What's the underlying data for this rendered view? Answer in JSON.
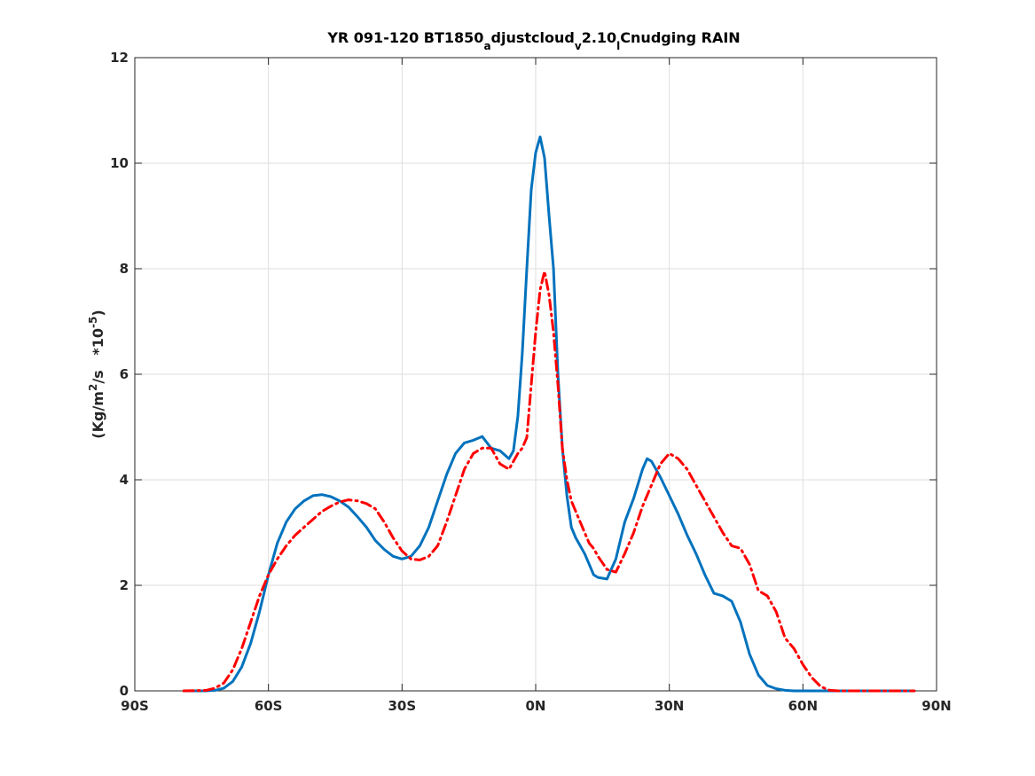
{
  "chart_data": {
    "type": "line",
    "title": {
      "base": "YR 091-120 BT1850",
      "sub1": "a",
      "mid1": "djustcloud",
      "sub2": "v",
      "mid2": "2.10",
      "sub3": "l",
      "tail": "Cnudging RAIN"
    },
    "ylabel": {
      "prefix": "(Kg/m",
      "sup1": "2",
      "mid": "/s   *10",
      "sup2": "-5",
      "suffix": ")"
    },
    "xlabel": "",
    "xlim": [
      -90,
      90
    ],
    "ylim": [
      0,
      12
    ],
    "grid": true,
    "x_ticks": [
      {
        "value": -90,
        "label": "90S"
      },
      {
        "value": -60,
        "label": "60S"
      },
      {
        "value": -30,
        "label": "30S"
      },
      {
        "value": 0,
        "label": "0N"
      },
      {
        "value": 30,
        "label": "30N"
      },
      {
        "value": 60,
        "label": "60N"
      },
      {
        "value": 90,
        "label": "90N"
      }
    ],
    "y_ticks": [
      {
        "value": 0,
        "label": "0"
      },
      {
        "value": 2,
        "label": "2"
      },
      {
        "value": 4,
        "label": "4"
      },
      {
        "value": 6,
        "label": "6"
      },
      {
        "value": 8,
        "label": "8"
      },
      {
        "value": 10,
        "label": "10"
      },
      {
        "value": 12,
        "label": "12"
      }
    ],
    "series": [
      {
        "color": "#0072bd",
        "style": "solid",
        "x": [
          -79,
          -74,
          -72,
          -70,
          -68,
          -66,
          -64,
          -62,
          -60,
          -58,
          -56,
          -54,
          -52,
          -50,
          -48,
          -46,
          -44,
          -42,
          -40,
          -38,
          -36,
          -34,
          -32,
          -30,
          -28,
          -26,
          -24,
          -22,
          -20,
          -18,
          -16,
          -14,
          -12,
          -10,
          -8,
          -6,
          -5,
          -4,
          -3,
          -2,
          -1,
          0,
          1,
          2,
          3,
          4,
          5,
          6,
          7,
          8,
          9,
          10,
          11,
          12,
          13,
          14,
          16,
          18,
          20,
          22,
          24,
          25,
          26,
          28,
          30,
          32,
          34,
          36,
          38,
          40,
          42,
          44,
          46,
          48,
          50,
          52,
          54,
          56,
          58,
          60,
          62,
          64,
          66,
          68,
          70,
          72,
          74,
          76,
          78,
          80,
          82,
          85
        ],
        "y": [
          0.0,
          0.0,
          0.01,
          0.05,
          0.18,
          0.45,
          0.9,
          1.5,
          2.2,
          2.8,
          3.2,
          3.45,
          3.6,
          3.7,
          3.72,
          3.68,
          3.6,
          3.48,
          3.3,
          3.1,
          2.85,
          2.68,
          2.55,
          2.5,
          2.55,
          2.75,
          3.1,
          3.6,
          4.1,
          4.5,
          4.7,
          4.75,
          4.82,
          4.6,
          4.55,
          4.4,
          4.55,
          5.2,
          6.4,
          8.0,
          9.5,
          10.2,
          10.5,
          10.1,
          9.0,
          8.0,
          6.0,
          4.6,
          3.7,
          3.1,
          2.9,
          2.75,
          2.6,
          2.4,
          2.2,
          2.15,
          2.12,
          2.5,
          3.2,
          3.65,
          4.2,
          4.4,
          4.35,
          4.05,
          3.7,
          3.35,
          2.95,
          2.6,
          2.2,
          1.85,
          1.8,
          1.7,
          1.3,
          0.7,
          0.3,
          0.1,
          0.04,
          0.01,
          0.0,
          0.0,
          0.0,
          0.0,
          0.0,
          0.0,
          0.0,
          0.0,
          0.0,
          0.0,
          0.0,
          0.0,
          0.0,
          0.0
        ]
      },
      {
        "color": "#ff0000",
        "style": "dashdot",
        "x": [
          -79,
          -74,
          -72,
          -70,
          -68,
          -66,
          -64,
          -62,
          -60,
          -58,
          -56,
          -54,
          -52,
          -50,
          -48,
          -46,
          -44,
          -42,
          -40,
          -38,
          -36,
          -34,
          -32,
          -30,
          -28,
          -26,
          -24,
          -22,
          -20,
          -18,
          -16,
          -14,
          -12,
          -10,
          -8,
          -6,
          -4,
          -3,
          -2,
          -1,
          0,
          1,
          2,
          3,
          4,
          5,
          6,
          7,
          8,
          9,
          10,
          11,
          12,
          13,
          14,
          16,
          18,
          20,
          22,
          24,
          26,
          28,
          30,
          32,
          34,
          36,
          38,
          40,
          42,
          44,
          46,
          48,
          50,
          52,
          54,
          56,
          58,
          60,
          62,
          64,
          66,
          68,
          70,
          72,
          74,
          76,
          78,
          80,
          82,
          85
        ],
        "y": [
          0.0,
          0.01,
          0.05,
          0.15,
          0.4,
          0.8,
          1.3,
          1.8,
          2.2,
          2.5,
          2.75,
          2.95,
          3.1,
          3.25,
          3.4,
          3.5,
          3.58,
          3.62,
          3.6,
          3.55,
          3.45,
          3.2,
          2.9,
          2.65,
          2.5,
          2.48,
          2.55,
          2.75,
          3.2,
          3.7,
          4.2,
          4.5,
          4.6,
          4.6,
          4.3,
          4.2,
          4.5,
          4.6,
          4.8,
          5.8,
          6.8,
          7.6,
          7.95,
          7.5,
          6.8,
          5.8,
          4.6,
          4.0,
          3.6,
          3.4,
          3.2,
          3.0,
          2.8,
          2.7,
          2.55,
          2.3,
          2.25,
          2.6,
          3.0,
          3.5,
          3.9,
          4.3,
          4.5,
          4.4,
          4.2,
          3.9,
          3.6,
          3.3,
          3.0,
          2.75,
          2.7,
          2.4,
          1.9,
          1.8,
          1.5,
          1.0,
          0.8,
          0.5,
          0.25,
          0.08,
          0.01,
          0.0,
          0.0,
          0.0,
          0.0,
          0.0,
          0.0,
          0.0,
          0.0,
          0.0
        ]
      }
    ]
  }
}
